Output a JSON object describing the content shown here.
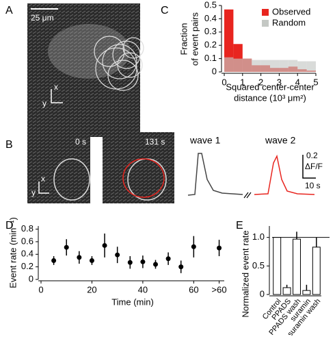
{
  "figure": {
    "panel_labels": [
      "A",
      "B",
      "C",
      "D",
      "E"
    ],
    "scale_bar": "25 μm",
    "axis_x": "x",
    "axis_y": "y",
    "times": [
      "0 s",
      "131 s"
    ],
    "traces": [
      "wave 1",
      "wave 2"
    ],
    "trace_scale_y": "0.2",
    "trace_unit": "ΔF/F",
    "trace_scale_x": "10 s"
  },
  "chart_data": [
    {
      "type": "histogram",
      "y_label": [
        "Fraction",
        "of event pairs"
      ],
      "x_label": [
        "Squared center-center",
        "distance (10³ μm²)"
      ],
      "bins": [
        0,
        0.5,
        1,
        1.5,
        2,
        2.5,
        3,
        3.5,
        4,
        4.5,
        5
      ],
      "series": [
        {
          "name": "Observed",
          "color": "#e8251f",
          "values": [
            0.47,
            0.21,
            0.1,
            0.05,
            0.05,
            0.03,
            0.03,
            0.04,
            0.02,
            0.01
          ]
        },
        {
          "name": "Random",
          "color": "#c4c8c4",
          "values": [
            0.11,
            0.1,
            0.1,
            0.09,
            0.09,
            0.09,
            0.09,
            0.09,
            0.08,
            0.08
          ]
        }
      ],
      "xlim": [
        0,
        5
      ],
      "xticks": [
        0,
        1,
        2,
        3,
        4,
        5
      ],
      "ylim": [
        0,
        0.5
      ],
      "yticks": [
        0,
        0.1,
        0.2,
        0.3,
        0.4,
        0.5
      ],
      "legend": "upper right"
    },
    {
      "type": "errorbar",
      "y_label": "Event rate (min⁻¹)",
      "x_label": "Time (min)",
      "x": [
        5,
        10,
        15,
        20,
        25,
        30,
        35,
        40,
        45,
        50,
        55,
        60,
        70
      ],
      "values": [
        0.3,
        0.51,
        0.35,
        0.3,
        0.54,
        0.39,
        0.27,
        0.28,
        0.24,
        0.33,
        0.2,
        0.52,
        0.5
      ],
      "errors": [
        0.07,
        0.13,
        0.1,
        0.07,
        0.19,
        0.13,
        0.1,
        0.1,
        0.07,
        0.1,
        0.1,
        0.17,
        0.13
      ],
      "color": "#000000",
      "xlim": [
        0,
        72
      ],
      "xticks": [
        0,
        20,
        40,
        60,
        {
          "value": 70,
          "label": ">60"
        }
      ],
      "ylim": [
        0,
        0.85
      ],
      "yticks": [
        0,
        0.2,
        0.4,
        0.6,
        0.8
      ]
    },
    {
      "type": "bar",
      "y_label": "Normalized event rate",
      "categories": [
        "Control",
        "PPADS",
        "PPADS wash",
        "suramin",
        "suramin wash"
      ],
      "values": [
        1,
        0.12,
        0.97,
        0.07,
        0.83
      ],
      "errors": [
        0,
        0.05,
        0.13,
        0.1,
        0.17
      ],
      "color": "#ffffff",
      "ylim": [
        0,
        1.2
      ],
      "yticks": [
        0,
        0.5,
        {
          "value": 1,
          "label": "1.0"
        }
      ],
      "reference_line": 1
    }
  ]
}
